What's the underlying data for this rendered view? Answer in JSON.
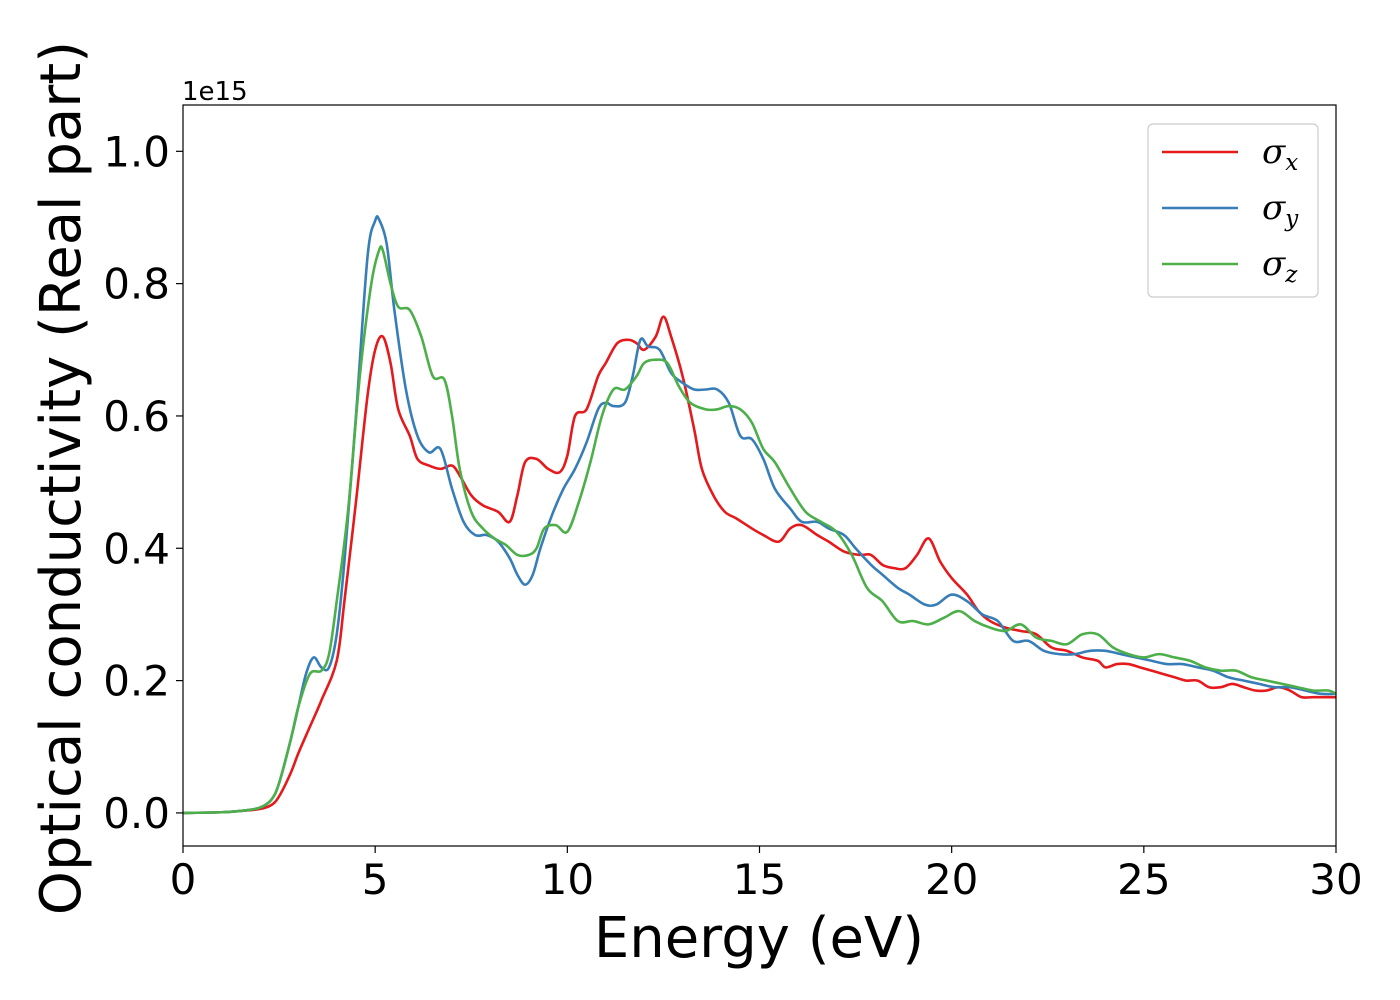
{
  "chart_data": {
    "type": "line",
    "title": "",
    "xlabel": "Energy (eV)",
    "ylabel": "Optical conductivity (Real part)",
    "y_offset_label": "1e15",
    "xlim": [
      0,
      30
    ],
    "ylim": [
      -0.05,
      1.07
    ],
    "xticks": [
      0,
      5,
      10,
      15,
      20,
      25,
      30
    ],
    "xtick_labels": [
      "0",
      "5",
      "10",
      "15",
      "20",
      "25",
      "30"
    ],
    "yticks": [
      0.0,
      0.2,
      0.4,
      0.6,
      0.8,
      1.0
    ],
    "ytick_labels": [
      "0.0",
      "0.2",
      "0.4",
      "0.6",
      "0.8",
      "1.0"
    ],
    "grid": false,
    "legend_position": "top-right",
    "series": [
      {
        "name": "σx",
        "symbol": "σ",
        "subscript": "x",
        "color": "#e41a1c",
        "x": [
          0,
          1,
          1.5,
          2,
          2.3,
          2.5,
          2.8,
          3.0,
          3.3,
          3.6,
          4.0,
          4.2,
          4.5,
          4.8,
          5.0,
          5.2,
          5.4,
          5.6,
          5.9,
          6.1,
          6.4,
          6.7,
          7.0,
          7.2,
          7.5,
          7.8,
          8.2,
          8.5,
          8.7,
          8.9,
          9.2,
          9.5,
          9.8,
          10.0,
          10.2,
          10.5,
          10.8,
          11.0,
          11.3,
          11.6,
          11.8,
          12.0,
          12.3,
          12.5,
          12.7,
          13.0,
          13.3,
          13.5,
          13.8,
          14.1,
          14.4,
          14.8,
          15.1,
          15.5,
          15.8,
          16.1,
          16.5,
          16.8,
          17.2,
          17.6,
          17.9,
          18.2,
          18.5,
          18.8,
          19.1,
          19.4,
          19.7,
          20.0,
          20.4,
          20.7,
          21.0,
          21.4,
          21.8,
          22.2,
          22.6,
          23.0,
          23.4,
          23.8,
          24.0,
          24.3,
          24.6,
          24.9,
          25.2,
          25.5,
          25.8,
          26.1,
          26.4,
          26.7,
          27.0,
          27.3,
          27.6,
          27.9,
          28.2,
          28.5,
          28.8,
          29.1,
          29.4,
          29.7,
          30.0
        ],
        "y": [
          0.0,
          0.001,
          0.003,
          0.006,
          0.012,
          0.025,
          0.06,
          0.09,
          0.13,
          0.17,
          0.23,
          0.32,
          0.47,
          0.63,
          0.7,
          0.72,
          0.68,
          0.61,
          0.57,
          0.535,
          0.525,
          0.52,
          0.525,
          0.51,
          0.48,
          0.465,
          0.455,
          0.44,
          0.48,
          0.53,
          0.535,
          0.52,
          0.515,
          0.54,
          0.6,
          0.61,
          0.66,
          0.68,
          0.71,
          0.715,
          0.71,
          0.7,
          0.72,
          0.75,
          0.72,
          0.66,
          0.58,
          0.52,
          0.48,
          0.455,
          0.445,
          0.43,
          0.42,
          0.41,
          0.43,
          0.435,
          0.42,
          0.41,
          0.395,
          0.39,
          0.39,
          0.375,
          0.37,
          0.37,
          0.39,
          0.415,
          0.38,
          0.355,
          0.33,
          0.305,
          0.29,
          0.28,
          0.275,
          0.27,
          0.25,
          0.245,
          0.235,
          0.23,
          0.22,
          0.225,
          0.225,
          0.22,
          0.215,
          0.21,
          0.205,
          0.2,
          0.2,
          0.19,
          0.19,
          0.195,
          0.19,
          0.185,
          0.185,
          0.19,
          0.185,
          0.175,
          0.175,
          0.175,
          0.175
        ]
      },
      {
        "name": "σy",
        "symbol": "σ",
        "subscript": "y",
        "color": "#377eb8",
        "x": [
          0,
          1,
          1.5,
          2,
          2.3,
          2.5,
          2.8,
          3.0,
          3.2,
          3.4,
          3.6,
          3.8,
          4.0,
          4.2,
          4.5,
          4.8,
          5.0,
          5.1,
          5.3,
          5.5,
          5.8,
          6.1,
          6.4,
          6.7,
          7.0,
          7.3,
          7.6,
          7.9,
          8.2,
          8.5,
          8.7,
          8.9,
          9.1,
          9.3,
          9.6,
          9.9,
          10.2,
          10.5,
          10.8,
          11.0,
          11.2,
          11.5,
          11.7,
          11.9,
          12.1,
          12.4,
          12.7,
          13.0,
          13.3,
          13.6,
          13.9,
          14.2,
          14.5,
          14.8,
          15.1,
          15.4,
          15.8,
          16.1,
          16.5,
          16.8,
          17.2,
          17.5,
          17.9,
          18.2,
          18.6,
          18.9,
          19.3,
          19.6,
          20.0,
          20.4,
          20.8,
          21.2,
          21.6,
          22.0,
          22.4,
          22.8,
          23.2,
          23.6,
          24.0,
          24.4,
          24.8,
          25.2,
          25.6,
          26.0,
          26.4,
          26.8,
          27.2,
          27.6,
          28.0,
          28.4,
          28.8,
          29.2,
          29.6,
          30.0
        ],
        "y": [
          0.0,
          0.001,
          0.003,
          0.008,
          0.02,
          0.045,
          0.11,
          0.16,
          0.21,
          0.235,
          0.22,
          0.22,
          0.27,
          0.38,
          0.6,
          0.84,
          0.895,
          0.897,
          0.86,
          0.76,
          0.64,
          0.57,
          0.545,
          0.55,
          0.49,
          0.44,
          0.42,
          0.42,
          0.41,
          0.385,
          0.36,
          0.345,
          0.36,
          0.4,
          0.45,
          0.49,
          0.52,
          0.56,
          0.61,
          0.62,
          0.615,
          0.62,
          0.66,
          0.715,
          0.705,
          0.7,
          0.665,
          0.65,
          0.64,
          0.64,
          0.64,
          0.62,
          0.57,
          0.565,
          0.535,
          0.49,
          0.46,
          0.44,
          0.44,
          0.43,
          0.42,
          0.4,
          0.375,
          0.36,
          0.34,
          0.33,
          0.315,
          0.315,
          0.33,
          0.32,
          0.3,
          0.29,
          0.26,
          0.26,
          0.245,
          0.24,
          0.24,
          0.245,
          0.245,
          0.24,
          0.235,
          0.23,
          0.225,
          0.225,
          0.22,
          0.215,
          0.205,
          0.2,
          0.195,
          0.19,
          0.19,
          0.185,
          0.18,
          0.18
        ]
      },
      {
        "name": "σz",
        "symbol": "σ",
        "subscript": "z",
        "color": "#4daf4a",
        "x": [
          0,
          1,
          1.5,
          2,
          2.3,
          2.5,
          2.8,
          3.0,
          3.3,
          3.6,
          3.8,
          4.0,
          4.3,
          4.6,
          4.9,
          5.1,
          5.2,
          5.4,
          5.6,
          5.9,
          6.2,
          6.5,
          6.8,
          7.0,
          7.2,
          7.5,
          7.8,
          8.1,
          8.4,
          8.7,
          9.0,
          9.2,
          9.4,
          9.7,
          10.0,
          10.3,
          10.6,
          10.9,
          11.2,
          11.5,
          11.8,
          12.0,
          12.3,
          12.6,
          12.9,
          13.2,
          13.6,
          13.9,
          14.2,
          14.5,
          14.8,
          15.1,
          15.4,
          15.8,
          16.2,
          16.6,
          17.0,
          17.4,
          17.8,
          18.2,
          18.6,
          19.0,
          19.4,
          19.8,
          20.2,
          20.6,
          21.0,
          21.4,
          21.8,
          22.2,
          22.6,
          23.0,
          23.4,
          23.8,
          24.2,
          24.6,
          25.0,
          25.4,
          25.8,
          26.2,
          26.6,
          27.0,
          27.4,
          27.8,
          28.2,
          28.6,
          29.0,
          29.4,
          29.8,
          30.0
        ],
        "y": [
          0.0,
          0.001,
          0.003,
          0.008,
          0.02,
          0.045,
          0.11,
          0.16,
          0.21,
          0.215,
          0.24,
          0.32,
          0.46,
          0.66,
          0.8,
          0.85,
          0.85,
          0.8,
          0.765,
          0.76,
          0.72,
          0.66,
          0.655,
          0.6,
          0.52,
          0.455,
          0.43,
          0.415,
          0.405,
          0.39,
          0.39,
          0.4,
          0.43,
          0.435,
          0.425,
          0.47,
          0.53,
          0.6,
          0.64,
          0.64,
          0.66,
          0.68,
          0.685,
          0.68,
          0.645,
          0.62,
          0.61,
          0.61,
          0.615,
          0.61,
          0.59,
          0.55,
          0.53,
          0.49,
          0.455,
          0.44,
          0.425,
          0.39,
          0.34,
          0.32,
          0.29,
          0.29,
          0.285,
          0.295,
          0.305,
          0.29,
          0.28,
          0.275,
          0.285,
          0.265,
          0.26,
          0.255,
          0.27,
          0.27,
          0.25,
          0.24,
          0.235,
          0.24,
          0.235,
          0.23,
          0.22,
          0.215,
          0.215,
          0.205,
          0.2,
          0.195,
          0.19,
          0.185,
          0.185,
          0.18
        ]
      }
    ]
  },
  "colors": {
    "frame": "#000000",
    "legend_border": "#cccccc",
    "background": "#ffffff"
  }
}
